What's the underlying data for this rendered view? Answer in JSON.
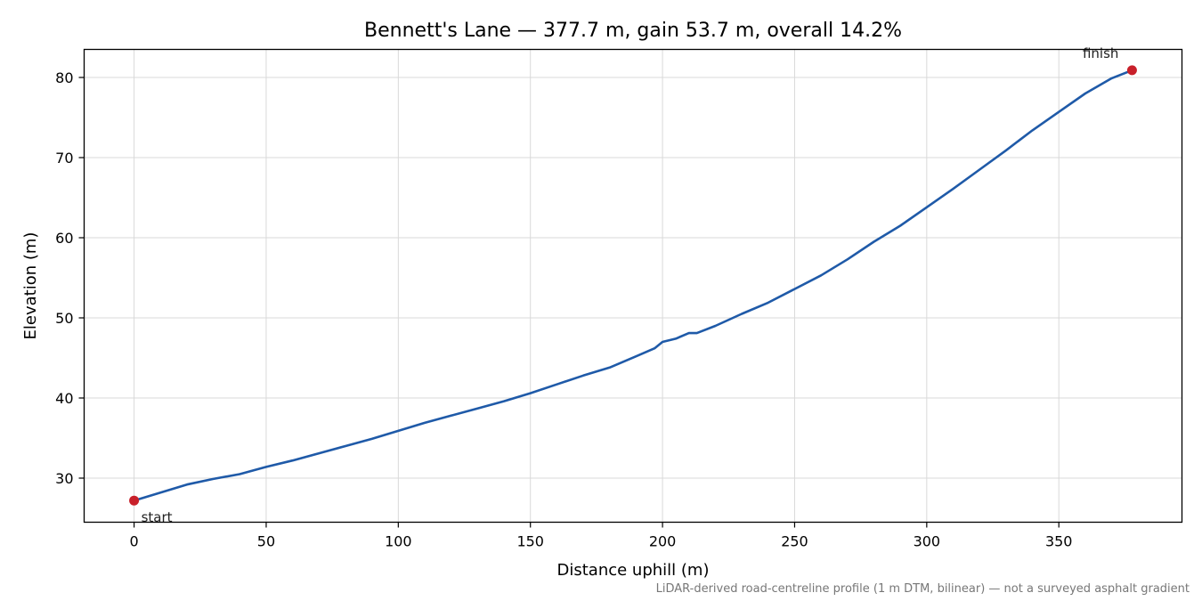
{
  "chart_data": {
    "type": "line",
    "title": "Bennett's Lane — 377.7 m, gain 53.7 m, overall 14.2%",
    "xlabel": "Distance uphill (m)",
    "ylabel": "Elevation (m)",
    "footnote": "LiDAR-derived road-centreline profile (1 m DTM, bilinear) — not a surveyed asphalt gradient",
    "xlim": [
      -18.9,
      396.6
    ],
    "ylim": [
      24.5,
      83.5
    ],
    "xticks": [
      0,
      50,
      100,
      150,
      200,
      250,
      300,
      350
    ],
    "yticks": [
      30,
      40,
      50,
      60,
      70,
      80
    ],
    "grid": true,
    "line_color": "#1f5aa8",
    "marker_color": "#c8202a",
    "series": [
      {
        "x": [
          0,
          10,
          20,
          30,
          40,
          50,
          60,
          70,
          80,
          90,
          100,
          110,
          120,
          130,
          140,
          150,
          160,
          170,
          175,
          180,
          190,
          197,
          200,
          205,
          210,
          213,
          220,
          230,
          240,
          250,
          260,
          270,
          280,
          290,
          300,
          310,
          320,
          330,
          340,
          350,
          360,
          370,
          377.7
        ],
        "y": [
          27.2,
          28.2,
          29.2,
          29.9,
          30.5,
          31.4,
          32.2,
          33.1,
          34.0,
          34.9,
          35.9,
          36.9,
          37.8,
          38.7,
          39.6,
          40.6,
          41.7,
          42.8,
          43.3,
          43.8,
          45.2,
          46.2,
          47.0,
          47.4,
          48.1,
          48.1,
          49.0,
          50.5,
          51.9,
          53.6,
          55.3,
          57.3,
          59.5,
          61.5,
          63.8,
          66.1,
          68.5,
          70.9,
          73.4,
          75.7,
          78.0,
          79.9,
          80.9
        ]
      }
    ],
    "annotations": [
      {
        "label": "start",
        "x": 0,
        "y": 27.2
      },
      {
        "label": "finish",
        "x": 377.7,
        "y": 80.9
      }
    ]
  }
}
